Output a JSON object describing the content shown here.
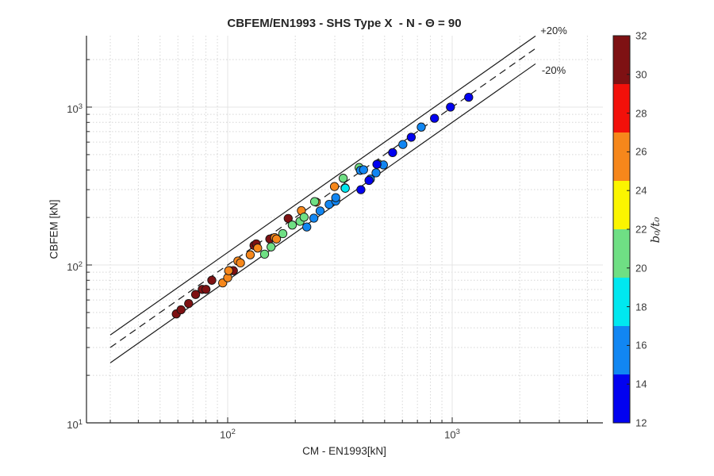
{
  "figure": {
    "title": "CBFEM/EN1993 - SHS Type X  - N - Θ = 90",
    "background": "#ffffff"
  },
  "axes": {
    "xlabel": "CM - EN1993[kN]",
    "ylabel": "CBFEM [kN]",
    "x_scale": "log",
    "y_scale": "log",
    "xlim": [
      23.5,
      4692
    ],
    "ylim": [
      10,
      2834
    ],
    "x_tick_exponents": [
      2,
      3
    ],
    "y_tick_exponents": [
      1,
      2,
      3
    ],
    "tick_base": "10",
    "grid": "on",
    "minor_grid": "on",
    "axis_color": "#262626",
    "major_grid_color": "#e4e4e4",
    "minor_grid_color": "#d6d6d6"
  },
  "annotations": {
    "plus20": "+20%",
    "minus20": "-20%"
  },
  "colorbar": {
    "label": "b₀/t₀",
    "min": 12,
    "max": 32,
    "ticks": [
      12,
      14,
      16,
      18,
      20,
      22,
      24,
      26,
      28,
      30,
      32
    ],
    "bands": [
      {
        "from": 12.0,
        "to": 14.5,
        "color": "#0202f0"
      },
      {
        "from": 14.5,
        "to": 17.0,
        "color": "#1186f2"
      },
      {
        "from": 17.0,
        "to": 19.5,
        "color": "#00e8f0"
      },
      {
        "from": 19.5,
        "to": 22.0,
        "color": "#6fdf84"
      },
      {
        "from": 22.0,
        "to": 24.5,
        "color": "#fbf500"
      },
      {
        "from": 24.5,
        "to": 27.0,
        "color": "#f6871b"
      },
      {
        "from": 27.0,
        "to": 29.5,
        "color": "#f2100a"
      },
      {
        "from": 29.5,
        "to": 32.0,
        "color": "#7e1113"
      }
    ]
  },
  "chart_data": {
    "type": "scatter",
    "title": "CBFEM/EN1993 - SHS Type X  - N - Θ = 90",
    "xlabel": "CM - EN1993[kN]",
    "ylabel": "CBFEM [kN]",
    "color_variable": "b0/t0",
    "color_range": [
      12,
      32
    ],
    "x_scale": "log",
    "y_scale": "log",
    "xlim": [
      23.5,
      4692
    ],
    "ylim": [
      10,
      2834
    ],
    "reference_lines": [
      {
        "name": "plus-20-percent",
        "label": "+20%",
        "slope": 1.2,
        "style": "solid",
        "x_range": [
          30,
          2350
        ]
      },
      {
        "name": "equality",
        "label": "",
        "slope": 1.0,
        "style": "dashed",
        "x_range": [
          30,
          2350
        ]
      },
      {
        "name": "minus-20-percent",
        "label": "-20%",
        "slope": 0.8,
        "style": "solid",
        "x_range": [
          30,
          2350
        ]
      }
    ],
    "points_format": [
      "CM_EN1993_kN",
      "CBFEM_kN",
      "b0_over_t0"
    ],
    "points": [
      [
        59,
        49,
        30
      ],
      [
        62,
        52,
        30
      ],
      [
        67,
        57,
        30
      ],
      [
        72,
        65,
        30
      ],
      [
        77,
        70,
        30
      ],
      [
        80,
        70,
        30
      ],
      [
        85,
        80,
        30
      ],
      [
        102,
        92,
        30
      ],
      [
        106,
        92,
        30
      ],
      [
        131,
        133,
        30
      ],
      [
        134,
        136,
        30
      ],
      [
        154,
        146,
        30
      ],
      [
        186,
        197,
        30
      ],
      [
        95,
        77,
        25
      ],
      [
        100,
        83,
        25
      ],
      [
        101,
        92,
        25
      ],
      [
        111,
        106,
        25
      ],
      [
        114,
        103,
        25
      ],
      [
        126,
        116,
        25
      ],
      [
        136,
        128,
        25
      ],
      [
        162,
        149,
        25
      ],
      [
        165,
        146,
        25
      ],
      [
        213,
        221,
        25
      ],
      [
        248,
        250,
        25
      ],
      [
        299,
        314,
        25
      ],
      [
        146,
        117,
        20
      ],
      [
        156,
        130,
        20
      ],
      [
        176,
        158,
        20
      ],
      [
        194,
        179,
        20
      ],
      [
        210,
        189,
        20
      ],
      [
        219,
        201,
        20
      ],
      [
        244,
        252,
        20
      ],
      [
        327,
        354,
        20
      ],
      [
        333,
        308,
        20
      ],
      [
        385,
        414,
        20
      ],
      [
        468,
        437,
        20
      ],
      [
        334,
        306,
        18
      ],
      [
        225,
        174,
        16
      ],
      [
        242,
        198,
        16
      ],
      [
        258,
        220,
        16
      ],
      [
        283,
        242,
        16
      ],
      [
        303,
        254,
        16
      ],
      [
        303,
        267,
        16
      ],
      [
        390,
        397,
        16
      ],
      [
        403,
        401,
        16
      ],
      [
        432,
        350,
        16
      ],
      [
        458,
        383,
        16
      ],
      [
        494,
        430,
        16
      ],
      [
        603,
        580,
        16
      ],
      [
        728,
        747,
        16
      ],
      [
        392,
        300,
        12.5
      ],
      [
        426,
        343,
        12.5
      ],
      [
        462,
        434,
        12.5
      ],
      [
        543,
        515,
        12.5
      ],
      [
        657,
        644,
        12.5
      ],
      [
        834,
        849,
        12.5
      ],
      [
        982,
        1000,
        12.5
      ],
      [
        1184,
        1154,
        12.5
      ]
    ],
    "marker": {
      "shape": "circle",
      "radius": 5.2,
      "edge_color": "#151515"
    }
  }
}
